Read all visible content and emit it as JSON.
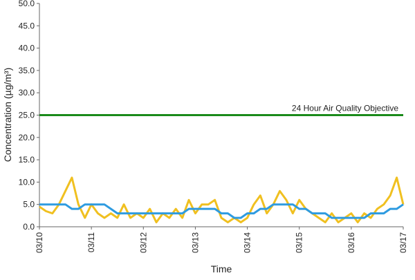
{
  "chart_data": {
    "type": "line",
    "y_label": "Concentration (µg/m³)",
    "x_label": "Time",
    "x": [
      "03/10",
      null,
      null,
      null,
      null,
      null,
      null,
      null,
      "03/11",
      null,
      null,
      null,
      null,
      null,
      null,
      null,
      "03/12",
      null,
      null,
      null,
      null,
      null,
      null,
      null,
      "03/13",
      null,
      null,
      null,
      null,
      null,
      null,
      null,
      "03/14",
      null,
      null,
      null,
      null,
      null,
      null,
      null,
      "03/15",
      null,
      null,
      null,
      null,
      null,
      null,
      null,
      "03/16",
      null,
      null,
      null,
      null,
      null,
      null,
      null,
      "03/17"
    ],
    "series": [
      {
        "color": "#f0c020",
        "values": [
          4.5,
          3.5,
          3,
          5,
          8,
          11,
          5,
          2,
          5,
          3,
          2,
          3,
          2,
          5,
          2,
          3,
          2,
          4,
          1,
          3,
          2,
          4,
          2,
          6,
          3,
          5,
          5,
          6,
          2,
          1,
          2,
          1,
          2,
          5,
          7,
          3,
          5,
          8,
          6,
          3,
          6,
          4,
          3,
          2,
          1,
          3,
          1,
          2,
          3,
          1,
          3,
          2,
          4,
          5,
          7,
          11,
          5
        ]
      },
      {
        "color": "#2e9be0",
        "values": [
          5,
          5,
          5,
          5,
          5,
          4,
          4,
          5,
          5,
          5,
          5,
          4,
          3,
          3,
          3,
          3,
          3,
          3,
          3,
          3,
          3,
          3,
          3,
          4,
          4,
          4,
          4,
          4,
          3,
          3,
          2,
          2,
          3,
          3,
          4,
          4,
          5,
          5,
          5,
          5,
          4,
          4,
          3,
          3,
          3,
          2,
          2,
          2,
          2,
          2,
          2,
          3,
          3,
          3,
          4,
          4,
          5
        ]
      }
    ],
    "objective": {
      "value": 25,
      "label": "24 Hour Air Quality Objective",
      "color": "#1a8a1a"
    },
    "ylim": [
      0,
      50
    ],
    "yticks": [
      {
        "value": 0,
        "label": "0.0"
      },
      {
        "value": 5,
        "label": "5.0"
      },
      {
        "value": 10,
        "label": "10.0"
      },
      {
        "value": 15,
        "label": "15.0"
      },
      {
        "value": 20,
        "label": "20.0"
      },
      {
        "value": 25,
        "label": "25.0"
      },
      {
        "value": 30,
        "label": "30.0"
      },
      {
        "value": 35,
        "label": "35.0"
      },
      {
        "value": 40,
        "label": "40.0"
      },
      {
        "value": 45,
        "label": "45.0"
      },
      {
        "value": 50,
        "label": "50.0"
      }
    ]
  }
}
